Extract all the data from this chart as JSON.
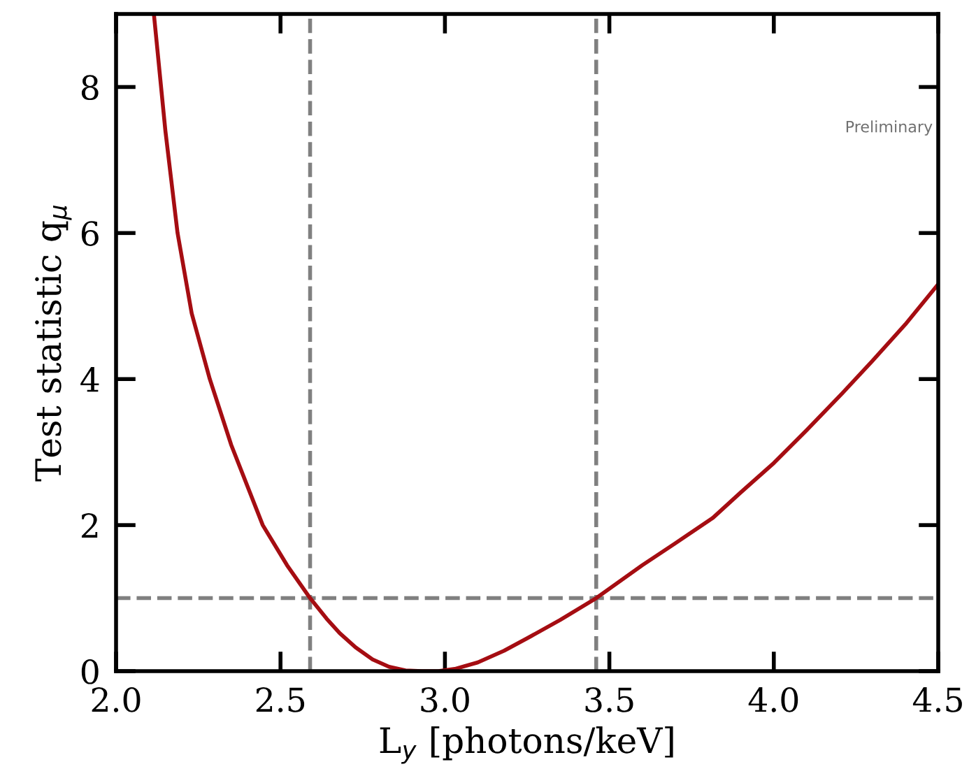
{
  "chart_data": {
    "type": "line",
    "xlabel": "L$_{y}$ [photons/keV]",
    "ylabel": "Test statistic q$_{μ}$",
    "x": [
      2.115,
      2.15,
      2.187,
      2.23,
      2.285,
      2.35,
      2.446,
      2.52,
      2.59,
      2.64,
      2.68,
      2.73,
      2.78,
      2.83,
      2.88,
      2.93,
      2.98,
      3.03,
      3.1,
      3.18,
      3.25,
      3.35,
      3.46,
      3.6,
      3.7,
      3.815,
      3.9,
      4.0,
      4.1,
      4.207,
      4.3,
      4.4,
      4.5
    ],
    "series": [
      {
        "color": "#a50d12",
        "values": [
          9.0,
          7.4,
          6.0,
          4.9,
          4.0,
          3.1,
          2.0,
          1.45,
          1.0,
          0.72,
          0.52,
          0.32,
          0.16,
          0.06,
          0.01,
          0.0,
          0.0,
          0.03,
          0.12,
          0.28,
          0.45,
          0.7,
          1.0,
          1.45,
          1.75,
          2.1,
          2.45,
          2.85,
          3.3,
          3.8,
          4.25,
          4.75,
          5.3
        ]
      }
    ],
    "xlim": [
      2.0,
      4.5
    ],
    "xticks": [
      {
        "value": 2,
        "label": "2.0"
      },
      2.5,
      {
        "value": 3,
        "label": "3.0"
      },
      3.5,
      {
        "value": 4,
        "label": "4.0"
      },
      4.5
    ],
    "ylim": [
      0,
      9
    ],
    "yticks": [
      0,
      2,
      4,
      6,
      8
    ],
    "ref_lines": [
      {
        "axis": "x",
        "value": 2.59,
        "color": "#808080",
        "line_style": "dashed"
      },
      {
        "axis": "x",
        "value": 3.46,
        "color": "#808080",
        "line_style": "dashed"
      },
      {
        "axis": "y",
        "value": 1,
        "color": "#808080",
        "line_style": "dashed"
      }
    ],
    "annotations": [
      "Preliminary"
    ],
    "grid": false,
    "legend": false
  }
}
